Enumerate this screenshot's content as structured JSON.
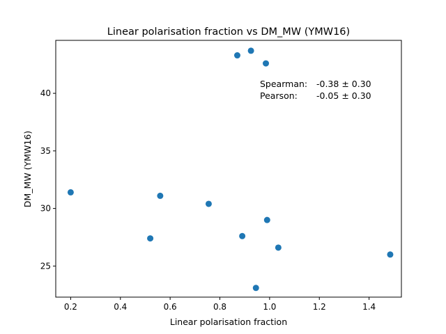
{
  "chart_data": {
    "type": "scatter",
    "title": "Linear polarisation fraction vs DM_MW (YMW16)",
    "xlabel": "Linear polarisation fraction",
    "ylabel": "DM_MW (YMW16)",
    "xlim": [
      0.14,
      1.53
    ],
    "ylim": [
      22.3,
      44.6
    ],
    "xticks": [
      0.2,
      0.4,
      0.6,
      0.8,
      1.0,
      1.2,
      1.4
    ],
    "xtick_labels": [
      "0.2",
      "0.4",
      "0.6",
      "0.8",
      "1.0",
      "1.2",
      "1.4"
    ],
    "yticks": [
      25,
      30,
      35,
      40
    ],
    "ytick_labels": [
      "25",
      "30",
      "35",
      "40"
    ],
    "grid": false,
    "marker_color": "#1f77b4",
    "points": [
      {
        "x": 0.2,
        "y": 31.4
      },
      {
        "x": 0.52,
        "y": 27.4
      },
      {
        "x": 0.56,
        "y": 31.1
      },
      {
        "x": 0.755,
        "y": 30.4
      },
      {
        "x": 0.87,
        "y": 43.3
      },
      {
        "x": 0.89,
        "y": 27.6
      },
      {
        "x": 0.925,
        "y": 43.7
      },
      {
        "x": 0.945,
        "y": 23.1
      },
      {
        "x": 0.985,
        "y": 42.6
      },
      {
        "x": 0.99,
        "y": 29.0
      },
      {
        "x": 1.035,
        "y": 26.6
      },
      {
        "x": 1.485,
        "y": 26.0
      }
    ],
    "annotations": {
      "spearman_label": "Spearman:",
      "spearman_value": "-0.38 ± 0.30",
      "pearson_label": "Pearson:",
      "pearson_value": "-0.05 ± 0.30"
    }
  }
}
